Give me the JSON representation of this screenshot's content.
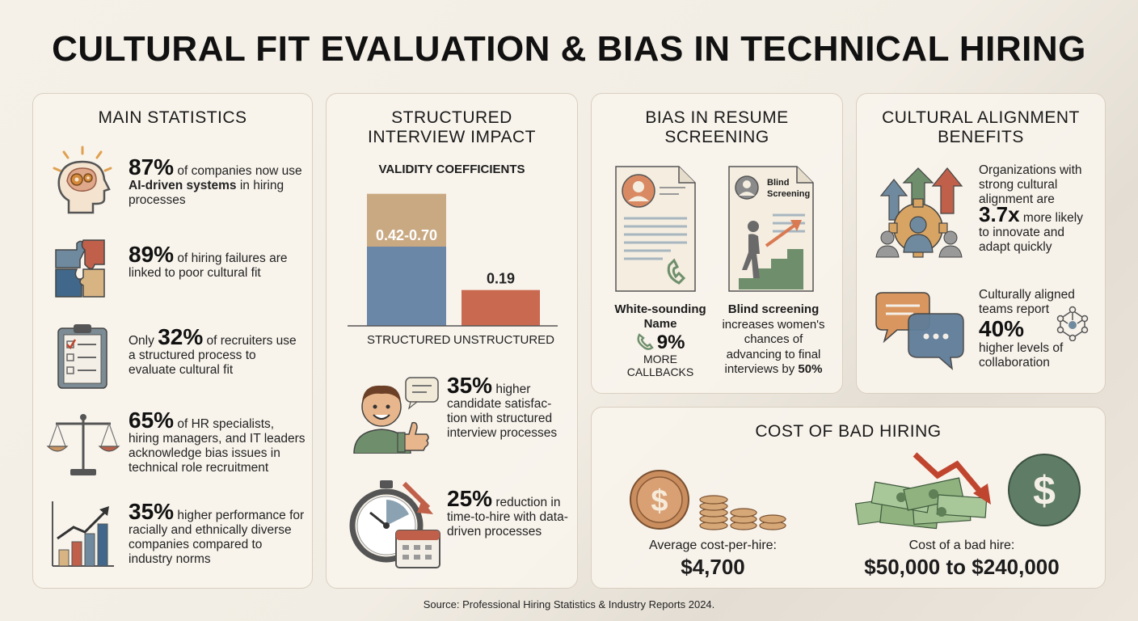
{
  "title": "CULTURAL FIT EVALUATION & BIAS IN TECHNICAL HIRING",
  "main_statistics": {
    "heading": "MAIN STATISTICS",
    "items": [
      {
        "value": "87%",
        "pre": "",
        "text_a": " of companies now use ",
        "bold": "AI-driven systems",
        "text_b": " in hiring processes",
        "icon": "brain-gears-icon"
      },
      {
        "value": "89%",
        "pre": "",
        "text_a": " of hiring failures are linked to poor cultural fit",
        "bold": "",
        "text_b": "",
        "icon": "puzzle-icon"
      },
      {
        "value": "32%",
        "pre": "Only ",
        "text_a": " of recruiters use a structured process to evaluate cultural fit",
        "bold": "",
        "text_b": "",
        "icon": "clipboard-checklist-icon"
      },
      {
        "value": "65%",
        "pre": "",
        "text_a": " of HR specialists, hiring managers, and IT leaders acknowledge bias issues in technical role recruitment",
        "bold": "",
        "text_b": "",
        "icon": "scales-icon"
      },
      {
        "value": "35%",
        "pre": "",
        "text_a": " higher performance for racially and ethnically diverse companies compared to industry norms",
        "bold": "",
        "text_b": "",
        "icon": "growth-chart-icon"
      }
    ]
  },
  "structured_interview": {
    "heading_line1": "STRUCTURED",
    "heading_line2": "INTERVIEW IMPACT",
    "chart_data": {
      "type": "bar",
      "title": "VALIDITY COEFFICIENTS",
      "categories": [
        "STRUCTURED",
        "UNSTRUCTURED"
      ],
      "values": [
        [
          0.42,
          0.7
        ],
        0.19
      ],
      "data_labels": [
        "0.42-0.70",
        "0.19"
      ],
      "ylim": [
        0,
        0.75
      ],
      "colors": {
        "structured_low": "#6a87a8",
        "structured_range": "#c9a982",
        "unstructured": "#c9694f"
      }
    },
    "satisfaction": {
      "value": "35%",
      "text": " higher candidate satisfac-tion with structured interview processes"
    },
    "time_to_hire": {
      "value": "25%",
      "text": " reduction in time-to-hire with data-driven processes"
    }
  },
  "resume_bias": {
    "heading_line1": "BIAS IN RESUME",
    "heading_line2": "SCREENING",
    "doc_label_line1": "Blind",
    "doc_label_line2": "Screening",
    "left_title_line1": "White-sounding",
    "left_title_line2": "Name",
    "left_value": "9%",
    "left_sub1": "MORE",
    "left_sub2": "CALLBACKS",
    "right_title": "Blind screening",
    "right_text": "increases women's chances of advancing to final interviews by ",
    "right_value": "50%"
  },
  "cultural_alignment": {
    "heading_line1": "CULTURAL ALIGNMENT",
    "heading_line2": "BENEFITS",
    "item1_pre": "Organizations with strong cultural alignment are",
    "item1_value": "3.7x",
    "item1_post": " more likely to innovate and adapt quickly",
    "item2_pre": "Culturally aligned teams report",
    "item2_value": "40%",
    "item2_post": "higher levels of collaboration"
  },
  "bad_hiring": {
    "heading": "COST OF BAD HIRING",
    "avg_label": "Average cost-per-hire:",
    "avg_value": "$4,700",
    "bad_label": "Cost of a bad hire:",
    "bad_value": "$50,000 to $240,000"
  },
  "source": "Source: Professional Hiring Statistics & Industry Reports 2024."
}
